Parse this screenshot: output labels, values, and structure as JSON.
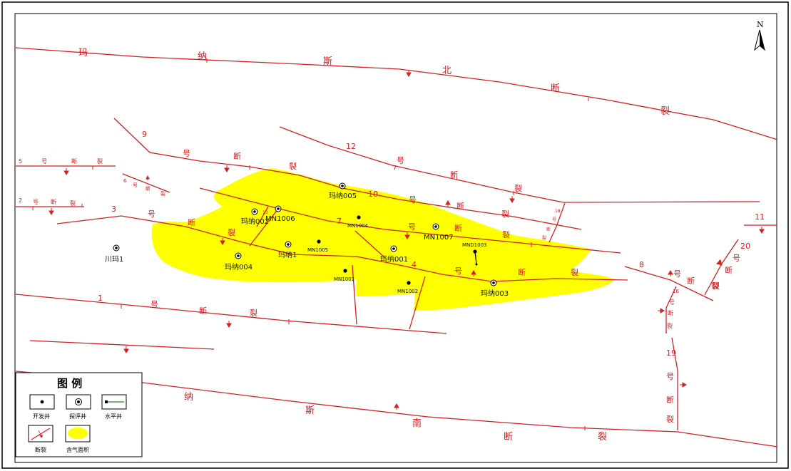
{
  "north_label": "N",
  "fault_chars": {
    "mns_north": [
      "玛",
      "纳",
      "斯",
      "北",
      "断",
      "裂"
    ],
    "mns_south": [
      "纳",
      "斯",
      "南",
      "断",
      "裂"
    ],
    "f9": [
      "9",
      "号",
      "断",
      "裂"
    ],
    "f12": [
      "12",
      "号",
      "断",
      "裂"
    ],
    "f10": [
      "10",
      "号",
      "断",
      "裂"
    ],
    "f7": [
      "7",
      "号",
      "断",
      "裂"
    ],
    "f4": [
      "4",
      "号",
      "断",
      "裂"
    ],
    "f3": [
      "3",
      "号",
      "断",
      "裂"
    ],
    "f1": [
      "1",
      "号",
      "断",
      "裂"
    ],
    "f5": [
      "5",
      "号",
      "断",
      "裂"
    ],
    "f2": [
      "2",
      "号",
      "断",
      "裂"
    ],
    "f6": [
      "6",
      "号",
      "断",
      "裂"
    ],
    "f8": [
      "8",
      "号",
      "断",
      "裂"
    ],
    "f11": [
      "11"
    ],
    "f20": [
      "20",
      "号",
      "断",
      "裂"
    ],
    "f16": [
      "16",
      "号",
      "断",
      "裂"
    ],
    "f19": [
      "19",
      "号",
      "断",
      "裂"
    ],
    "f13": [
      "13"
    ],
    "f18": [
      "18",
      "号",
      "断",
      "裂"
    ]
  },
  "wells": {
    "mana005": "玛纳005",
    "mana002": "玛纳002",
    "mn1006": "MN1006",
    "mn1004": "MN1004",
    "mn1007": "MN1007",
    "mnd1003": "MND1003",
    "mn1005": "MN1005",
    "mana1": "玛纳1",
    "mana001": "玛纳001",
    "mana004": "玛纳004",
    "mn1001": "MN1001",
    "mn1002": "MN1002",
    "mana003": "玛纳003",
    "chuanma1": "川玛1"
  },
  "legend": {
    "title": "图    例",
    "items": [
      {
        "label": "开发井"
      },
      {
        "label": "探评井"
      },
      {
        "label": "水平井"
      },
      {
        "label": "断裂"
      },
      {
        "label": "含气面积"
      }
    ]
  },
  "colors": {
    "fault": "#d42020",
    "gas_area": "#ffff00",
    "frame": "#000000"
  }
}
